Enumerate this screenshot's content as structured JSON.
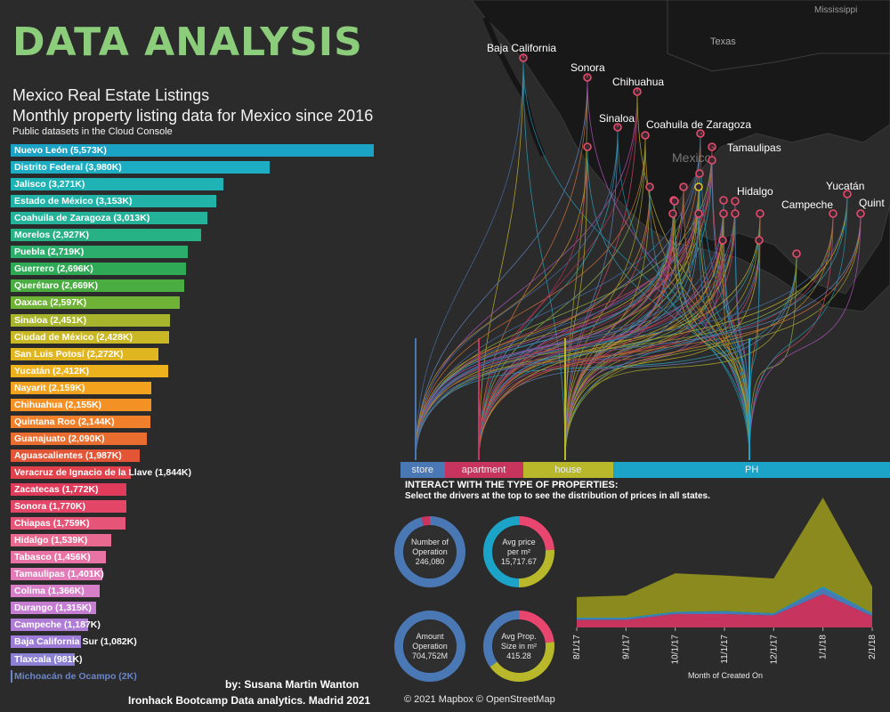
{
  "header": {
    "title": "DATA ANALYSIS",
    "title_color": "#8ccd7b",
    "subtitle_1": "Mexico Real Estate Listings",
    "subtitle_2": "Monthly property listing data for Mexico since 2016",
    "subtitle_3": "Public datasets in the Cloud Console"
  },
  "credits": {
    "author": "by: Susana Martin Wanton",
    "course": "Ironhack Bootcamp Data analytics. Madrid 2021",
    "map_attribution": "© 2021 Mapbox © OpenStreetMap"
  },
  "map": {
    "country_labels": [
      "Mississippi",
      "Texas",
      "Mexico"
    ],
    "state_labels": [
      "Baja California",
      "Sonora",
      "Chihuahua",
      "Sinaloa",
      "Coahuila de Zaragoza",
      "Tamaulipas",
      "Hidalgo",
      "Campeche",
      "Yucatán",
      "Quint"
    ]
  },
  "property_types": {
    "items": [
      {
        "label": "store",
        "color": "#4a78b5",
        "share": 0.09
      },
      {
        "label": "apartment",
        "color": "#c7355f",
        "share": 0.16
      },
      {
        "label": "house",
        "color": "#b8b82a",
        "share": 0.185
      },
      {
        "label": "PH",
        "color": "#1ca3c8",
        "share": 0.565
      }
    ]
  },
  "interact": {
    "heading": "INTERACT WITH THE TYPE OF PROPERTIES:",
    "instruction": "Select the drivers at the top to see the distribution of prices in all states."
  },
  "kpis": [
    {
      "label_1": "Number of",
      "label_2": "Operation",
      "value": "246,080",
      "segments": [
        {
          "color": "#4a78b5",
          "fraction": 0.96
        },
        {
          "color": "#c7355f",
          "fraction": 0.04
        }
      ]
    },
    {
      "label_1": "Avg price",
      "label_2": "per m²",
      "value": "15,717.67",
      "segments": [
        {
          "color": "#e8466e",
          "fraction": 0.24
        },
        {
          "color": "#b8b82a",
          "fraction": 0.26
        },
        {
          "color": "#1ca3c8",
          "fraction": 0.5
        }
      ]
    },
    {
      "label_1": "Amount",
      "label_2": "Operation",
      "value": "704,752M",
      "segments": [
        {
          "color": "#4a78b5",
          "fraction": 1.0
        }
      ]
    },
    {
      "label_1": "Avg Prop.",
      "label_2": "Size in m²",
      "value": "415.28",
      "segments": [
        {
          "color": "#e8466e",
          "fraction": 0.23
        },
        {
          "color": "#b8b82a",
          "fraction": 0.42
        },
        {
          "color": "#4a78b5",
          "fraction": 0.35
        }
      ]
    }
  ],
  "chart_data": [
    {
      "type": "bar",
      "orientation": "horizontal",
      "categories": [
        "Nuevo León",
        "Distrito Federal",
        "Jalisco",
        "Estado de México",
        "Coahuila de Zaragoza",
        "Morelos",
        "Puebla",
        "Guerrero",
        "Querétaro",
        "Oaxaca",
        "Sinaloa",
        "Ciudad de México",
        "San Luis Potosí",
        "Yucatán",
        "Nayarit",
        "Chihuahua",
        "Quintana Roo",
        "Guanajuato",
        "Aguascalientes",
        "Veracruz de Ignacio de la Llave",
        "Zacatecas",
        "Sonora",
        "Chiapas",
        "Hidalgo",
        "Tabasco",
        "Tamaulipas",
        "Colima",
        "Durango",
        "Campeche",
        "Baja California Sur",
        "Tlaxcala",
        "Michoacán de Ocampo"
      ],
      "values": [
        5573,
        3980,
        3271,
        3153,
        3013,
        2927,
        2719,
        2696,
        2669,
        2597,
        2451,
        2428,
        2272,
        2412,
        2159,
        2155,
        2144,
        2090,
        1987,
        1844,
        1772,
        1770,
        1759,
        1539,
        1456,
        1401,
        1366,
        1315,
        1187,
        1082,
        981,
        2
      ],
      "value_labels": [
        "5,573K",
        "3,980K",
        "3,271K",
        "3,153K",
        "3,013K",
        "2,927K",
        "2,719K",
        "2,696K",
        "2,669K",
        "2,597K",
        "2,451K",
        "2,428K",
        "2,272K",
        "2,412K",
        "2,159K",
        "2,155K",
        "2,144K",
        "2,090K",
        "1,987K",
        "1,844K",
        "1,772K",
        "1,770K",
        "1,759K",
        "1,539K",
        "1,456K",
        "1,401K",
        "1,366K",
        "1,315K",
        "1,187K",
        "1,082K",
        "981K",
        "2K"
      ],
      "colors": [
        "#1aa3c4",
        "#1cadc2",
        "#1fb3b5",
        "#22b3a8",
        "#24b39a",
        "#27b184",
        "#2bae6c",
        "#2fa955",
        "#4aad42",
        "#6eb236",
        "#a7b52d",
        "#c9b725",
        "#dfb520",
        "#edb11e",
        "#f3a21f",
        "#f39125",
        "#f0802b",
        "#ea6d30",
        "#e25537",
        "#e0414a",
        "#e03b5a",
        "#e34667",
        "#e65478",
        "#e86a90",
        "#e874a5",
        "#e27bb8",
        "#d77ec8",
        "#c67ed3",
        "#b07dd6",
        "#9c7cd6",
        "#8a80d4",
        "#6b86c8"
      ]
    },
    {
      "type": "area",
      "stacked": true,
      "x": [
        "8/1/17",
        "9/1/17",
        "10/1/17",
        "11/1/17",
        "12/1/17",
        "1/1/18",
        "2/1/18"
      ],
      "xlabel": "Month of Created On",
      "series": [
        {
          "color": "#c7355f",
          "values": [
            10,
            10,
            18,
            18,
            16,
            45,
            15
          ]
        },
        {
          "color": "#4a78b5",
          "values": [
            2,
            2,
            2,
            3,
            2,
            8,
            3
          ]
        },
        {
          "color": "#1ca3c8",
          "values": [
            1,
            1,
            1,
            1,
            1,
            2,
            1
          ]
        },
        {
          "color": "#8a8a1f",
          "values": [
            28,
            30,
            52,
            48,
            47,
            120,
            36
          ]
        }
      ],
      "ylim": [
        0,
        180
      ]
    }
  ]
}
